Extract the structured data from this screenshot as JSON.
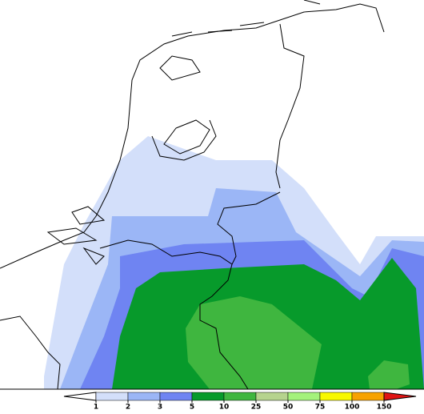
{
  "legend": {
    "ticks": [
      1,
      2,
      3,
      5,
      10,
      25,
      50,
      75,
      100,
      150
    ],
    "colors": [
      "#ffffff",
      "#d3dffa",
      "#9bb6f6",
      "#6f84f2",
      "#079a2b",
      "#3fb63f",
      "#b6d38e",
      "#a4f27b",
      "#f8f800",
      "#f7a200",
      "#e01414"
    ]
  }
}
